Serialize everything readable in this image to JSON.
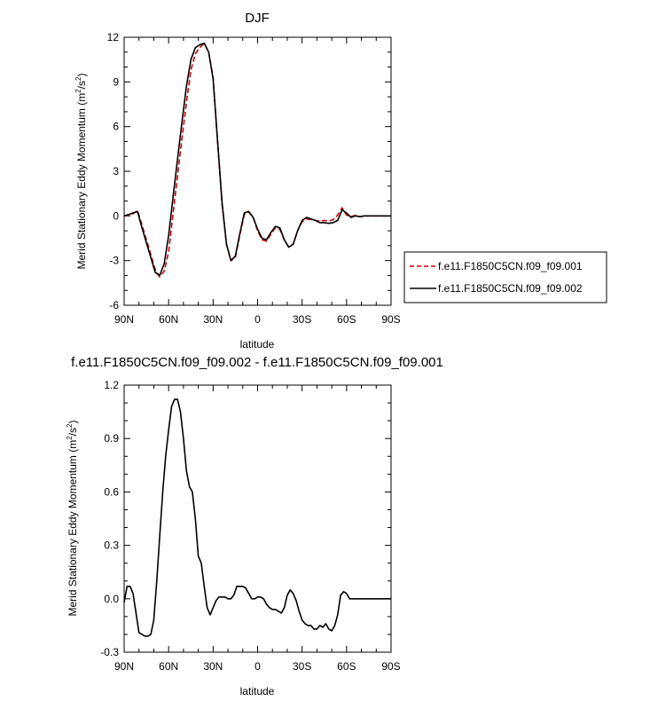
{
  "chart_data": [
    {
      "type": "line",
      "title": "DJF",
      "xlabel": "latitude",
      "ylabel": "Merid Stationary Eddy Momentum (m",
      "ylabel_sup": "2",
      "ylabel_mid": "/s",
      "ylabel_sup2": "2",
      "ylabel_end": ")",
      "xlim": [
        90,
        -90
      ],
      "ylim": [
        -6,
        12
      ],
      "x_ticks": [
        90,
        60,
        30,
        0,
        -30,
        -60,
        -90
      ],
      "x_tick_labels": [
        "90N",
        "60N",
        "30N",
        "0",
        "30S",
        "60S",
        "90S"
      ],
      "y_ticks": [
        -6,
        -3,
        0,
        3,
        6,
        9,
        12
      ],
      "y_tick_labels": [
        "-6",
        "-3",
        "0",
        "3",
        "6",
        "9",
        "12"
      ],
      "legend": "right",
      "series": [
        {
          "name": "f.e11.F1850C5CN.f09_f09.001",
          "color": "#cc0000",
          "style": "dashed",
          "x": [
            90,
            87,
            84,
            81,
            78,
            75,
            72,
            69,
            66,
            63,
            60,
            57,
            54,
            51,
            48,
            45,
            42,
            39,
            36,
            33,
            30,
            27,
            24,
            21,
            18,
            15,
            12,
            9,
            6,
            3,
            0,
            -3,
            -6,
            -9,
            -12,
            -15,
            -18,
            -21,
            -24,
            -27,
            -30,
            -33,
            -36,
            -39,
            -42,
            -45,
            -48,
            -51,
            -54,
            -57,
            -60,
            -63,
            -66,
            -69,
            -72,
            -75,
            -78,
            -81,
            -84,
            -87,
            -90
          ],
          "y": [
            0.0,
            0.05,
            0.15,
            0.35,
            -0.6,
            -1.6,
            -2.6,
            -3.6,
            -4.1,
            -3.7,
            -2.4,
            0.2,
            2.7,
            5.2,
            7.6,
            9.8,
            10.9,
            11.3,
            11.6,
            11.0,
            9.3,
            5.0,
            0.8,
            -1.9,
            -3.0,
            -2.8,
            -1.3,
            0.1,
            0.25,
            -0.1,
            -1.0,
            -1.6,
            -1.7,
            -1.2,
            -0.8,
            -0.9,
            -1.6,
            -2.1,
            -1.9,
            -1.0,
            -0.4,
            -0.2,
            -0.25,
            -0.3,
            -0.35,
            -0.3,
            -0.35,
            -0.25,
            0.05,
            0.55,
            0.05,
            -0.05,
            0.05,
            -0.05,
            0.0,
            0.0,
            0.0,
            0.0,
            0.0,
            0.0,
            0.0
          ]
        },
        {
          "name": "f.e11.F1850C5CN.f09_f09.002",
          "color": "#000000",
          "style": "solid",
          "x": [
            90,
            87,
            84,
            81,
            78,
            75,
            72,
            69,
            66,
            63,
            60,
            57,
            54,
            51,
            48,
            45,
            42,
            39,
            36,
            33,
            30,
            27,
            24,
            21,
            18,
            15,
            12,
            9,
            6,
            3,
            0,
            -3,
            -6,
            -9,
            -12,
            -15,
            -18,
            -21,
            -24,
            -27,
            -30,
            -33,
            -36,
            -39,
            -42,
            -45,
            -48,
            -51,
            -54,
            -57,
            -60,
            -63,
            -66,
            -69,
            -72,
            -75,
            -78,
            -81,
            -84,
            -87,
            -90
          ],
          "y": [
            0.0,
            0.1,
            0.2,
            0.3,
            -0.8,
            -1.8,
            -2.8,
            -3.8,
            -4.0,
            -3.2,
            -1.3,
            1.3,
            3.8,
            6.3,
            8.7,
            10.5,
            11.3,
            11.5,
            11.6,
            11.0,
            9.2,
            5.1,
            0.9,
            -1.9,
            -3.0,
            -2.7,
            -1.2,
            0.2,
            0.3,
            -0.1,
            -0.9,
            -1.5,
            -1.6,
            -1.1,
            -0.7,
            -0.8,
            -1.6,
            -2.1,
            -1.9,
            -1.0,
            -0.3,
            -0.1,
            -0.2,
            -0.3,
            -0.45,
            -0.45,
            -0.5,
            -0.45,
            -0.3,
            0.4,
            0.2,
            -0.1,
            0.0,
            -0.05,
            0.0,
            0.0,
            0.0,
            0.0,
            0.0,
            0.0,
            0.0
          ]
        }
      ]
    },
    {
      "type": "line",
      "title": "f.e11.F1850C5CN.f09_f09.002 - f.e11.F1850C5CN.f09_f09.001",
      "xlabel": "latitude",
      "ylabel": "Merid Stationary Eddy Momentum (m",
      "ylabel_sup": "2",
      "ylabel_mid": "/s",
      "ylabel_sup2": "2",
      "ylabel_end": ")",
      "xlim": [
        90,
        -90
      ],
      "ylim": [
        -0.3,
        1.2
      ],
      "x_ticks": [
        90,
        60,
        30,
        0,
        -30,
        -60,
        -90
      ],
      "x_tick_labels": [
        "90N",
        "60N",
        "30N",
        "0",
        "30S",
        "60S",
        "90S"
      ],
      "y_ticks": [
        -0.3,
        0.0,
        0.3,
        0.6,
        0.9,
        1.2
      ],
      "y_tick_labels": [
        "-0.3",
        "0.0",
        "0.3",
        "0.6",
        "0.9",
        "1.2"
      ],
      "series": [
        {
          "color": "#000000",
          "style": "solid",
          "x": [
            90,
            88,
            86,
            84,
            82,
            80,
            78,
            76,
            74,
            72,
            70,
            68,
            66,
            64,
            62,
            60,
            58,
            56,
            54,
            52,
            50,
            48,
            46,
            44,
            42,
            40,
            38,
            36,
            34,
            32,
            30,
            28,
            26,
            24,
            22,
            20,
            18,
            16,
            14,
            12,
            10,
            8,
            6,
            4,
            2,
            0,
            -2,
            -4,
            -6,
            -8,
            -10,
            -12,
            -14,
            -16,
            -18,
            -20,
            -22,
            -24,
            -26,
            -28,
            -30,
            -32,
            -34,
            -36,
            -38,
            -40,
            -42,
            -44,
            -46,
            -48,
            -50,
            -52,
            -54,
            -56,
            -58,
            -60,
            -62,
            -64,
            -66,
            -68,
            -70,
            -72,
            -74,
            -76,
            -78,
            -80,
            -82,
            -84,
            -86,
            -88,
            -90
          ],
          "y": [
            -0.02,
            0.07,
            0.07,
            0.03,
            -0.08,
            -0.19,
            -0.2,
            -0.21,
            -0.21,
            -0.2,
            -0.12,
            0.1,
            0.35,
            0.6,
            0.8,
            0.95,
            1.08,
            1.12,
            1.12,
            1.05,
            0.9,
            0.72,
            0.63,
            0.6,
            0.45,
            0.24,
            0.2,
            0.07,
            -0.05,
            -0.09,
            -0.05,
            -0.01,
            0.01,
            0.01,
            0.01,
            0.0,
            0.0,
            0.02,
            0.07,
            0.07,
            0.07,
            0.06,
            0.03,
            0.0,
            0.0,
            0.01,
            0.01,
            0.0,
            -0.03,
            -0.05,
            -0.06,
            -0.06,
            -0.07,
            -0.08,
            -0.05,
            0.02,
            0.05,
            0.03,
            -0.01,
            -0.07,
            -0.12,
            -0.14,
            -0.15,
            -0.15,
            -0.17,
            -0.17,
            -0.15,
            -0.16,
            -0.14,
            -0.17,
            -0.18,
            -0.15,
            -0.09,
            0.02,
            0.04,
            0.03,
            0.0,
            0.0,
            0.0,
            0.0,
            0.0,
            0.0,
            0.0,
            0.0,
            0.0,
            0.0,
            0.0,
            0.0,
            0.0,
            0.0,
            0.0
          ]
        }
      ]
    }
  ]
}
